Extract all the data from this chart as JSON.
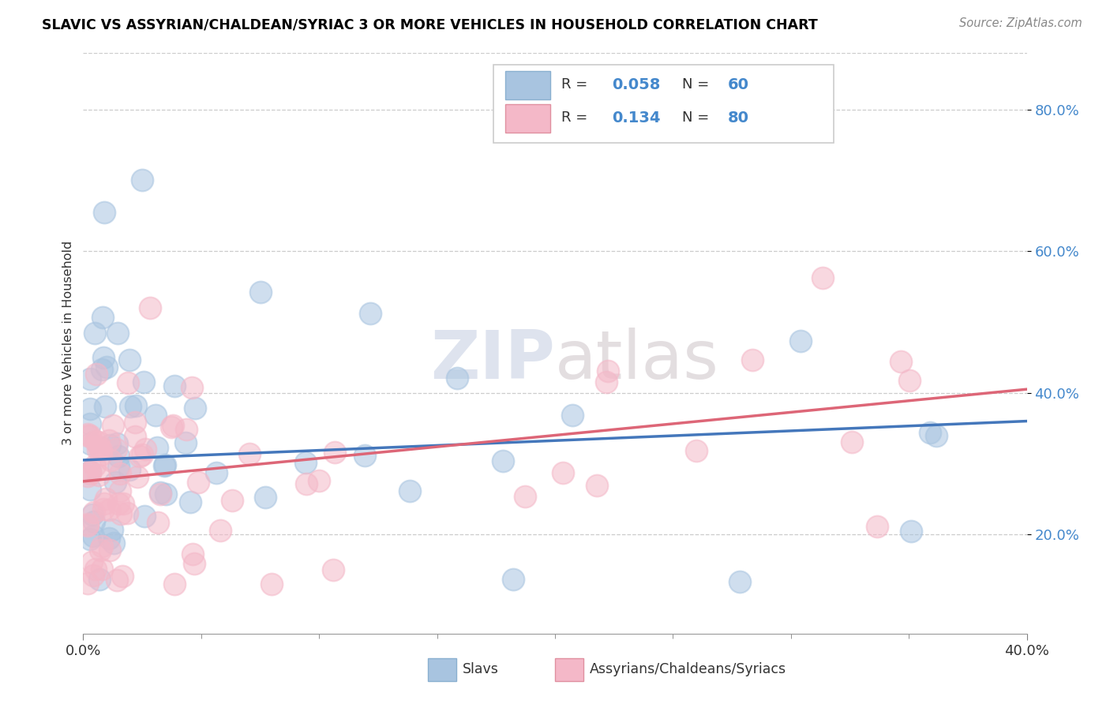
{
  "title": "SLAVIC VS ASSYRIAN/CHALDEAN/SYRIAC 3 OR MORE VEHICLES IN HOUSEHOLD CORRELATION CHART",
  "source": "Source: ZipAtlas.com",
  "ylabel": "3 or more Vehicles in Household",
  "ytick_labels": [
    "20.0%",
    "40.0%",
    "60.0%",
    "80.0%"
  ],
  "ytick_values": [
    0.2,
    0.4,
    0.6,
    0.8
  ],
  "xlim": [
    0.0,
    0.4
  ],
  "ylim": [
    0.06,
    0.88
  ],
  "legend1_r": "0.058",
  "legend1_n": "60",
  "legend2_r": "0.134",
  "legend2_n": "80",
  "color_slavs": "#a8c4e0",
  "color_assyrians": "#f4b8c8",
  "color_trend_slavs": "#4477bb",
  "color_trend_assyrians": "#dd6677",
  "watermark_zip": "ZIP",
  "watermark_atlas": "atlas",
  "legend_label1": "Slavs",
  "legend_label2": "Assyrians/Chaldeans/Syriacs",
  "slavs_trend_x": [
    0.0,
    0.4
  ],
  "slavs_trend_y": [
    0.305,
    0.36
  ],
  "ass_trend_x": [
    0.0,
    0.4
  ],
  "ass_trend_y": [
    0.275,
    0.405
  ]
}
